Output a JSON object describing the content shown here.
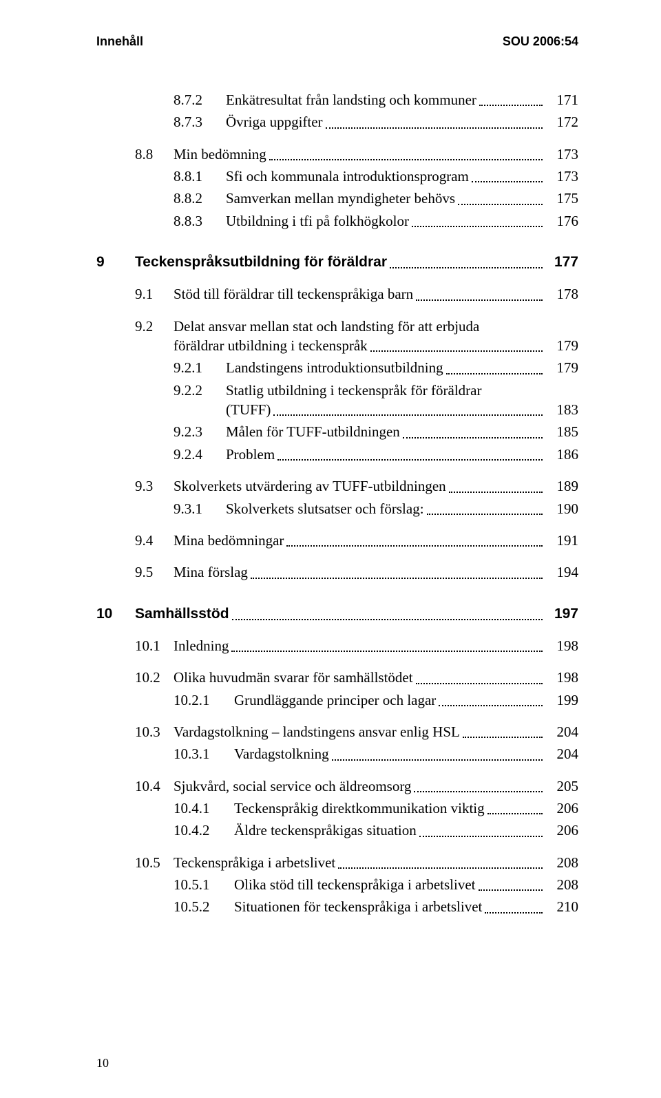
{
  "page": {
    "running_header_left": "Innehåll",
    "running_header_right": "SOU 2006:54",
    "page_number": "10"
  },
  "toc": [
    {
      "type": "row",
      "indent": "indent2",
      "num": "8.7.2",
      "title": "Enkätresultat från landsting och kommuner",
      "page": "171"
    },
    {
      "type": "row",
      "indent": "indent2",
      "num": "8.7.3",
      "title": "Övriga uppgifter",
      "page": "172"
    },
    {
      "type": "gap",
      "size": "gap-md"
    },
    {
      "type": "row",
      "indent": "indent1",
      "num": "8.8",
      "title": "Min bedömning",
      "page": "173"
    },
    {
      "type": "row",
      "indent": "indent2",
      "num": "8.8.1",
      "title": "Sfi och kommunala introduktionsprogram",
      "page": "173"
    },
    {
      "type": "row",
      "indent": "indent2",
      "num": "8.8.2",
      "title": "Samverkan mellan myndigheter behövs",
      "page": "175"
    },
    {
      "type": "row",
      "indent": "indent2",
      "num": "8.8.3",
      "title": "Utbildning i tfi på folkhögkolor",
      "page": "176"
    },
    {
      "type": "gap",
      "size": "gap-lg"
    },
    {
      "type": "row",
      "indent": "indent0",
      "num": "9",
      "title": "Teckenspråksutbildning för föräldrar",
      "page": "177",
      "bold": true
    },
    {
      "type": "gap",
      "size": "gap-md"
    },
    {
      "type": "row",
      "indent": "indent1",
      "num": "9.1",
      "title": "Stöd till föräldrar till teckenspråkiga barn",
      "page": "178"
    },
    {
      "type": "gap",
      "size": "gap-md"
    },
    {
      "type": "wrap",
      "indent": "indent1",
      "label_w": 56,
      "text_indent": 112,
      "num": "9.2",
      "title1": "Delat ansvar mellan stat och landsting för att erbjuda",
      "title2": "föräldrar utbildning i teckenspråk",
      "page": "179"
    },
    {
      "type": "row",
      "indent": "indent2",
      "num": "9.2.1",
      "title": "Landstingens introduktionsutbildning",
      "page": "179"
    },
    {
      "type": "wrap",
      "indent": "indent2",
      "label_w": 76,
      "text_indent": 188,
      "num": "9.2.2",
      "title1": "Statlig utbildning i teckenspråk för föräldrar",
      "title2": "(TUFF)",
      "page": "183"
    },
    {
      "type": "row",
      "indent": "indent2",
      "num": "9.2.3",
      "title": "Målen för TUFF-utbildningen",
      "page": "185"
    },
    {
      "type": "row",
      "indent": "indent2",
      "num": "9.2.4",
      "title": "Problem",
      "page": "186"
    },
    {
      "type": "gap",
      "size": "gap-md"
    },
    {
      "type": "row",
      "indent": "indent1",
      "num": "9.3",
      "title": "Skolverkets utvärdering av TUFF-utbildningen",
      "page": "189"
    },
    {
      "type": "row",
      "indent": "indent2",
      "num": "9.3.1",
      "title": "Skolverkets slutsatser och förslag:",
      "page": "190"
    },
    {
      "type": "gap",
      "size": "gap-md"
    },
    {
      "type": "row",
      "indent": "indent1",
      "num": "9.4",
      "title": "Mina bedömningar",
      "page": "191"
    },
    {
      "type": "gap",
      "size": "gap-md"
    },
    {
      "type": "row",
      "indent": "indent1",
      "num": "9.5",
      "title": "Mina förslag",
      "page": "194"
    },
    {
      "type": "gap",
      "size": "gap-lg"
    },
    {
      "type": "row",
      "indent": "indent0",
      "num": "10",
      "title": "Samhällsstöd",
      "page": "197",
      "bold": true
    },
    {
      "type": "gap",
      "size": "gap-md"
    },
    {
      "type": "row",
      "indent": "indent1",
      "num": "10.1",
      "title": "Inledning",
      "page": "198"
    },
    {
      "type": "gap",
      "size": "gap-md"
    },
    {
      "type": "row",
      "indent": "indent1",
      "num": "10.2",
      "title": "Olika huvudmän svarar för samhällstödet",
      "page": "198"
    },
    {
      "type": "row",
      "indent": "indent2b",
      "num": "10.2.1",
      "title": "Grundläggande principer och lagar",
      "page": "199"
    },
    {
      "type": "gap",
      "size": "gap-md"
    },
    {
      "type": "row",
      "indent": "indent1",
      "num": "10.3",
      "title": "Vardagstolkning – landstingens ansvar enlig HSL",
      "page": "204"
    },
    {
      "type": "row",
      "indent": "indent2b",
      "num": "10.3.1",
      "title": "Vardagstolkning",
      "page": "204"
    },
    {
      "type": "gap",
      "size": "gap-md"
    },
    {
      "type": "row",
      "indent": "indent1",
      "num": "10.4",
      "title": "Sjukvård, social service och äldreomsorg",
      "page": "205"
    },
    {
      "type": "row",
      "indent": "indent2b",
      "num": "10.4.1",
      "title": "Teckenspråkig direktkommunikation viktig",
      "page": "206"
    },
    {
      "type": "row",
      "indent": "indent2b",
      "num": "10.4.2",
      "title": "Äldre teckenspråkigas situation",
      "page": "206"
    },
    {
      "type": "gap",
      "size": "gap-md"
    },
    {
      "type": "row",
      "indent": "indent1",
      "num": "10.5",
      "title": "Teckenspråkiga i arbetslivet",
      "page": "208"
    },
    {
      "type": "row",
      "indent": "indent2b",
      "num": "10.5.1",
      "title": "Olika stöd till teckenspråkiga i arbetslivet",
      "page": "208"
    },
    {
      "type": "row",
      "indent": "indent2b",
      "num": "10.5.2",
      "title": "Situationen för teckenspråkiga i arbetslivet",
      "page": "210"
    }
  ]
}
